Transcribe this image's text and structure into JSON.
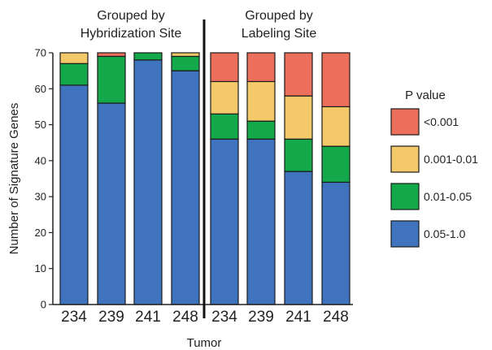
{
  "chart_data": {
    "type": "bar",
    "stacked": true,
    "title": "",
    "groups": [
      {
        "label_lines": [
          "Grouped by",
          "Hybridization Site"
        ],
        "categories": [
          "234",
          "239",
          "241",
          "248"
        ]
      },
      {
        "label_lines": [
          "Grouped by",
          "Labeling Site"
        ],
        "categories": [
          "234",
          "239",
          "241",
          "248"
        ]
      }
    ],
    "categories": [
      "234",
      "239",
      "241",
      "248",
      "234",
      "239",
      "241",
      "248"
    ],
    "xlabel": "Tumor",
    "ylabel": "Number of Signature Genes",
    "ylim": [
      0,
      70
    ],
    "yticks": [
      0,
      10,
      20,
      30,
      40,
      50,
      60,
      70
    ],
    "grid": false,
    "legend": {
      "title": "P value",
      "position": "right"
    },
    "series": [
      {
        "name": "0.05-1.0",
        "color": "#3f73be",
        "values": [
          61,
          56,
          68,
          65,
          46,
          46,
          37,
          34
        ]
      },
      {
        "name": "0.01-0.05",
        "color": "#13a84a",
        "values": [
          6,
          13,
          2,
          4,
          7,
          5,
          9,
          10
        ]
      },
      {
        "name": "0.001-0.01",
        "color": "#f3c96a",
        "values": [
          3,
          0,
          0,
          1,
          9,
          11,
          12,
          11
        ]
      },
      {
        "name": "<0.001",
        "color": "#ec6f5c",
        "values": [
          0,
          1,
          0,
          0,
          8,
          8,
          12,
          15
        ]
      }
    ],
    "legend_order": [
      "<0.001",
      "0.001-0.01",
      "0.01-0.05",
      "0.05-1.0"
    ]
  }
}
